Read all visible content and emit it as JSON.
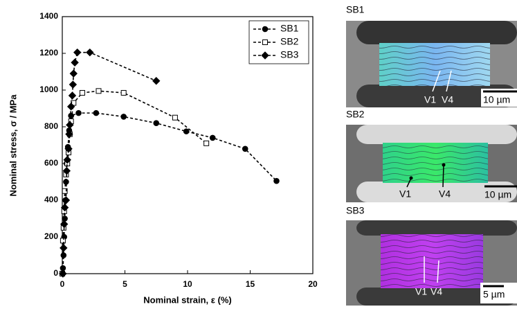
{
  "chart_data": {
    "type": "line",
    "y_label": "Nominal stress, σ / MPa",
    "x_label": "Nominal strain, ε (%)",
    "xlim": [
      0,
      20
    ],
    "xticks": [
      0,
      5,
      10,
      15,
      20
    ],
    "ylim": [
      0,
      1400
    ],
    "yticks": [
      0,
      200,
      400,
      600,
      800,
      1000,
      1200,
      1400
    ],
    "legend": "upper right",
    "series": [
      {
        "name": "SB1",
        "color": "#000000",
        "marker": "circle",
        "marker_fill": "#000000",
        "x": [
          0,
          0.05,
          0.1,
          0.15,
          0.2,
          0.25,
          0.3,
          0.35,
          0.45,
          0.55,
          0.7,
          1.3,
          2.7,
          4.9,
          7.5,
          9.9,
          12.0,
          14.6,
          17.1
        ],
        "values": [
          0,
          30,
          100,
          200,
          300,
          400,
          500,
          600,
          690,
          780,
          860,
          875,
          875,
          855,
          820,
          775,
          740,
          680,
          505
        ]
      },
      {
        "name": "SB2",
        "color": "#000000",
        "marker": "square",
        "marker_fill": "#ffffff",
        "x": [
          0,
          0.05,
          0.1,
          0.15,
          0.2,
          0.3,
          0.4,
          0.5,
          0.6,
          0.7,
          0.9,
          1.6,
          2.9,
          4.9,
          9.0,
          11.5
        ],
        "values": [
          0,
          180,
          250,
          340,
          450,
          540,
          600,
          660,
          760,
          830,
          930,
          985,
          995,
          985,
          850,
          710
        ]
      },
      {
        "name": "SB3",
        "color": "#000000",
        "marker": "diamond",
        "marker_fill": "#000000",
        "x": [
          0.05,
          0.1,
          0.15,
          0.2,
          0.3,
          0.35,
          0.4,
          0.5,
          0.55,
          0.6,
          0.7,
          0.8,
          0.85,
          0.9,
          1.0,
          1.2,
          2.2,
          7.5
        ],
        "values": [
          0,
          140,
          270,
          360,
          400,
          560,
          620,
          680,
          760,
          810,
          910,
          970,
          1030,
          1090,
          1150,
          1205,
          1205,
          1050
        ]
      }
    ]
  },
  "panels": [
    {
      "title": "SB1",
      "labels": [
        "V1",
        "V4"
      ],
      "scale": "10 µm"
    },
    {
      "title": "SB2",
      "labels": [
        "V1",
        "V4"
      ],
      "scale": "10 µm"
    },
    {
      "title": "SB3",
      "labels": [
        "V1",
        "V4"
      ],
      "scale": "5 µm"
    }
  ]
}
